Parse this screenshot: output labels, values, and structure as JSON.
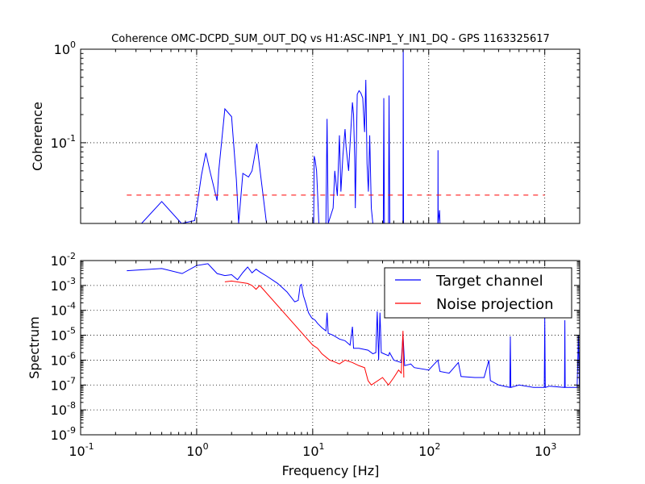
{
  "chart_data": [
    {
      "type": "line",
      "title": "Coherence OMC-DCPD_SUM_OUT_DQ vs H1:ASC-INP1_Y_IN1_DQ - GPS 1163325617",
      "xlabel": "",
      "ylabel": "Coherence",
      "xscale": "log",
      "yscale": "log",
      "xlim": [
        0.1,
        2000
      ],
      "ylim": [
        0.0137,
        1.0
      ],
      "grid": true,
      "y_ticks": [
        {
          "base": "10",
          "exp": "-1",
          "value": 0.1
        },
        {
          "base": "10",
          "exp": "0",
          "value": 1.0
        }
      ],
      "series": [
        {
          "name": "",
          "color": "#0000ff",
          "style": "solid",
          "points": [
            [
              0.335,
              0.0137
            ],
            [
              0.5,
              0.0235
            ],
            [
              0.74,
              0.0137
            ],
            [
              0.96,
              0.0147
            ],
            [
              1.0,
              0.02
            ],
            [
              1.1,
              0.045
            ],
            [
              1.2,
              0.078
            ],
            [
              1.3,
              0.05
            ],
            [
              1.5,
              0.024
            ],
            [
              1.55,
              0.05
            ],
            [
              1.75,
              0.23
            ],
            [
              2.0,
              0.19
            ],
            [
              2.2,
              0.04
            ],
            [
              2.3,
              0.0137
            ],
            [
              2.5,
              0.047
            ],
            [
              2.8,
              0.043
            ],
            [
              3.0,
              0.05
            ],
            [
              3.3,
              0.098
            ],
            [
              3.6,
              0.04
            ],
            [
              4.0,
              0.0137
            ],
            [
              10.2,
              0.0137
            ],
            [
              10.3,
              0.072
            ],
            [
              10.5,
              0.065
            ],
            [
              10.8,
              0.05
            ],
            [
              11.0,
              0.03
            ],
            [
              11.3,
              0.0137
            ],
            [
              13.0,
              0.0137
            ],
            [
              13.3,
              0.18
            ],
            [
              13.6,
              0.0137
            ],
            [
              15.0,
              0.02
            ],
            [
              15.5,
              0.05
            ],
            [
              16.3,
              0.027
            ],
            [
              17.0,
              0.12
            ],
            [
              17.5,
              0.03
            ],
            [
              18.2,
              0.072
            ],
            [
              19.0,
              0.14
            ],
            [
              19.4,
              0.09
            ],
            [
              20.4,
              0.05
            ],
            [
              21.2,
              0.12
            ],
            [
              22.0,
              0.27
            ],
            [
              22.5,
              0.2
            ],
            [
              23.0,
              0.07
            ],
            [
              23.3,
              0.02
            ],
            [
              24.2,
              0.33
            ],
            [
              25.1,
              0.36
            ],
            [
              26.0,
              0.34
            ],
            [
              27.0,
              0.3
            ],
            [
              28.0,
              0.13
            ],
            [
              28.7,
              0.47
            ],
            [
              29.4,
              0.06
            ],
            [
              30.2,
              0.03
            ],
            [
              31.0,
              0.12
            ],
            [
              32.0,
              0.02
            ],
            [
              33.0,
              0.0137
            ],
            [
              40.6,
              0.0137
            ],
            [
              41.0,
              0.3
            ],
            [
              41.5,
              0.0137
            ],
            [
              45.0,
              0.0137
            ],
            [
              45.5,
              0.32
            ],
            [
              46.2,
              0.0137
            ],
            [
              60.0,
              0.0137
            ],
            [
              60.3,
              1.0
            ],
            [
              60.7,
              0.0137
            ],
            [
              120.0,
              0.0137
            ],
            [
              120.2,
              0.083
            ],
            [
              120.6,
              0.0137
            ],
            [
              124.0,
              0.019
            ],
            [
              125.0,
              0.0137
            ]
          ]
        },
        {
          "name": "",
          "color": "#ff0000",
          "style": "dashed",
          "points": [
            [
              0.25,
              0.0275
            ],
            [
              1000,
              0.0275
            ]
          ]
        }
      ]
    },
    {
      "type": "line",
      "title": "",
      "xlabel": "Frequency [Hz]",
      "ylabel": "Spectrum",
      "xscale": "log",
      "yscale": "log",
      "xlim": [
        0.1,
        2000
      ],
      "ylim": [
        1e-09,
        0.01
      ],
      "grid": true,
      "legend_position": "top-right",
      "x_ticks": [
        {
          "base": "10",
          "exp": "-1",
          "value": 0.1
        },
        {
          "base": "10",
          "exp": "0",
          "value": 1
        },
        {
          "base": "10",
          "exp": "1",
          "value": 10
        },
        {
          "base": "10",
          "exp": "2",
          "value": 100
        },
        {
          "base": "10",
          "exp": "3",
          "value": 1000
        }
      ],
      "y_ticks": [
        {
          "base": "10",
          "exp": "-9",
          "value": 1e-09
        },
        {
          "base": "10",
          "exp": "-8",
          "value": 1e-08
        },
        {
          "base": "10",
          "exp": "-7",
          "value": 1e-07
        },
        {
          "base": "10",
          "exp": "-6",
          "value": 1e-06
        },
        {
          "base": "10",
          "exp": "-5",
          "value": 1e-05
        },
        {
          "base": "10",
          "exp": "-4",
          "value": 0.0001
        },
        {
          "base": "10",
          "exp": "-3",
          "value": 0.001
        },
        {
          "base": "10",
          "exp": "-2",
          "value": 0.01
        }
      ],
      "series": [
        {
          "name": "Target channel",
          "color": "#0000ff",
          "style": "solid",
          "points": [
            [
              0.25,
              0.0039
            ],
            [
              0.5,
              0.0048
            ],
            [
              0.75,
              0.003
            ],
            [
              1.0,
              0.0063
            ],
            [
              1.25,
              0.0075
            ],
            [
              1.5,
              0.003
            ],
            [
              1.75,
              0.0025
            ],
            [
              2.0,
              0.0027
            ],
            [
              2.25,
              0.0017
            ],
            [
              2.5,
              0.0033
            ],
            [
              2.75,
              0.0055
            ],
            [
              3.0,
              0.0032
            ],
            [
              3.25,
              0.0045
            ],
            [
              3.5,
              0.0035
            ],
            [
              4.0,
              0.0024
            ],
            [
              5.0,
              0.0012
            ],
            [
              6.0,
              0.00055
            ],
            [
              7.0,
              0.00022
            ],
            [
              7.5,
              0.00025
            ],
            [
              7.8,
              0.001
            ],
            [
              8.0,
              0.0011
            ],
            [
              8.3,
              0.0004
            ],
            [
              8.7,
              0.0002
            ],
            [
              9.2,
              8e-05
            ],
            [
              9.8,
              5e-05
            ],
            [
              10.5,
              4e-05
            ],
            [
              11.0,
              3e-05
            ],
            [
              12.0,
              2e-05
            ],
            [
              13.0,
              1.5e-05
            ],
            [
              13.3,
              8e-05
            ],
            [
              13.6,
              1.2e-05
            ],
            [
              15.0,
              1e-05
            ],
            [
              17.0,
              7e-06
            ],
            [
              19.0,
              6e-06
            ],
            [
              21.0,
              4e-06
            ],
            [
              22.0,
              2.2e-05
            ],
            [
              22.5,
              3e-06
            ],
            [
              25.0,
              3e-06
            ],
            [
              30.0,
              2.5e-06
            ],
            [
              33.0,
              1.8e-06
            ],
            [
              35.0,
              2e-06
            ],
            [
              36.0,
              9e-05
            ],
            [
              37.0,
              1e-06
            ],
            [
              38.0,
              8e-05
            ],
            [
              39.0,
              2e-06
            ],
            [
              45.0,
              1.5e-06
            ],
            [
              46.0,
              2e-06
            ],
            [
              50.0,
              1e-06
            ],
            [
              58.0,
              8e-07
            ],
            [
              60.0,
              1.1e-05
            ],
            [
              62.0,
              6e-07
            ],
            [
              70.0,
              7e-07
            ],
            [
              75.0,
              5e-07
            ],
            [
              100.0,
              4e-07
            ],
            [
              120.0,
              1e-06
            ],
            [
              125.0,
              3.5e-07
            ],
            [
              150.0,
              3e-07
            ],
            [
              180.0,
              8e-07
            ],
            [
              190.0,
              2.2e-07
            ],
            [
              250.0,
              2e-07
            ],
            [
              300.0,
              2e-07
            ],
            [
              330.0,
              1e-06
            ],
            [
              340.0,
              1.5e-07
            ],
            [
              400.0,
              1e-07
            ],
            [
              500.0,
              8e-08
            ],
            [
              505.0,
              9e-06
            ],
            [
              510.0,
              8e-08
            ],
            [
              600.0,
              1e-07
            ],
            [
              800.0,
              8e-08
            ],
            [
              990.0,
              8e-08
            ],
            [
              1000.0,
              5e-05
            ],
            [
              1010.0,
              8e-08
            ],
            [
              1100.0,
              9e-08
            ],
            [
              1480.0,
              8e-08
            ],
            [
              1490.0,
              4e-05
            ],
            [
              1500.0,
              8e-08
            ],
            [
              1900.0,
              8e-08
            ],
            [
              1950.0,
              1e-05
            ],
            [
              1990.0,
              8e-08
            ]
          ]
        },
        {
          "name": "Noise projection",
          "color": "#ff0000",
          "style": "solid",
          "points": [
            [
              1.75,
              0.0014
            ],
            [
              2.0,
              0.0015
            ],
            [
              2.75,
              0.0012
            ],
            [
              3.0,
              0.001
            ],
            [
              3.25,
              0.0007
            ],
            [
              3.5,
              0.001
            ],
            [
              10.0,
              4e-06
            ],
            [
              11.0,
              3e-06
            ],
            [
              12.0,
              1.8e-06
            ],
            [
              14.0,
              1e-06
            ],
            [
              15.0,
              9e-07
            ],
            [
              17.0,
              7e-07
            ],
            [
              19.0,
              1e-06
            ],
            [
              22.0,
              8e-07
            ],
            [
              25.0,
              6e-07
            ],
            [
              28.0,
              5e-07
            ],
            [
              30.0,
              1.5e-07
            ],
            [
              32.0,
              1e-07
            ],
            [
              40.0,
              2e-07
            ],
            [
              45.0,
              1e-07
            ],
            [
              50.0,
              2e-07
            ],
            [
              55.0,
              4e-07
            ],
            [
              58.0,
              3e-07
            ],
            [
              60.0,
              1.5e-05
            ],
            [
              61.0,
              2e-07
            ]
          ]
        }
      ]
    }
  ]
}
